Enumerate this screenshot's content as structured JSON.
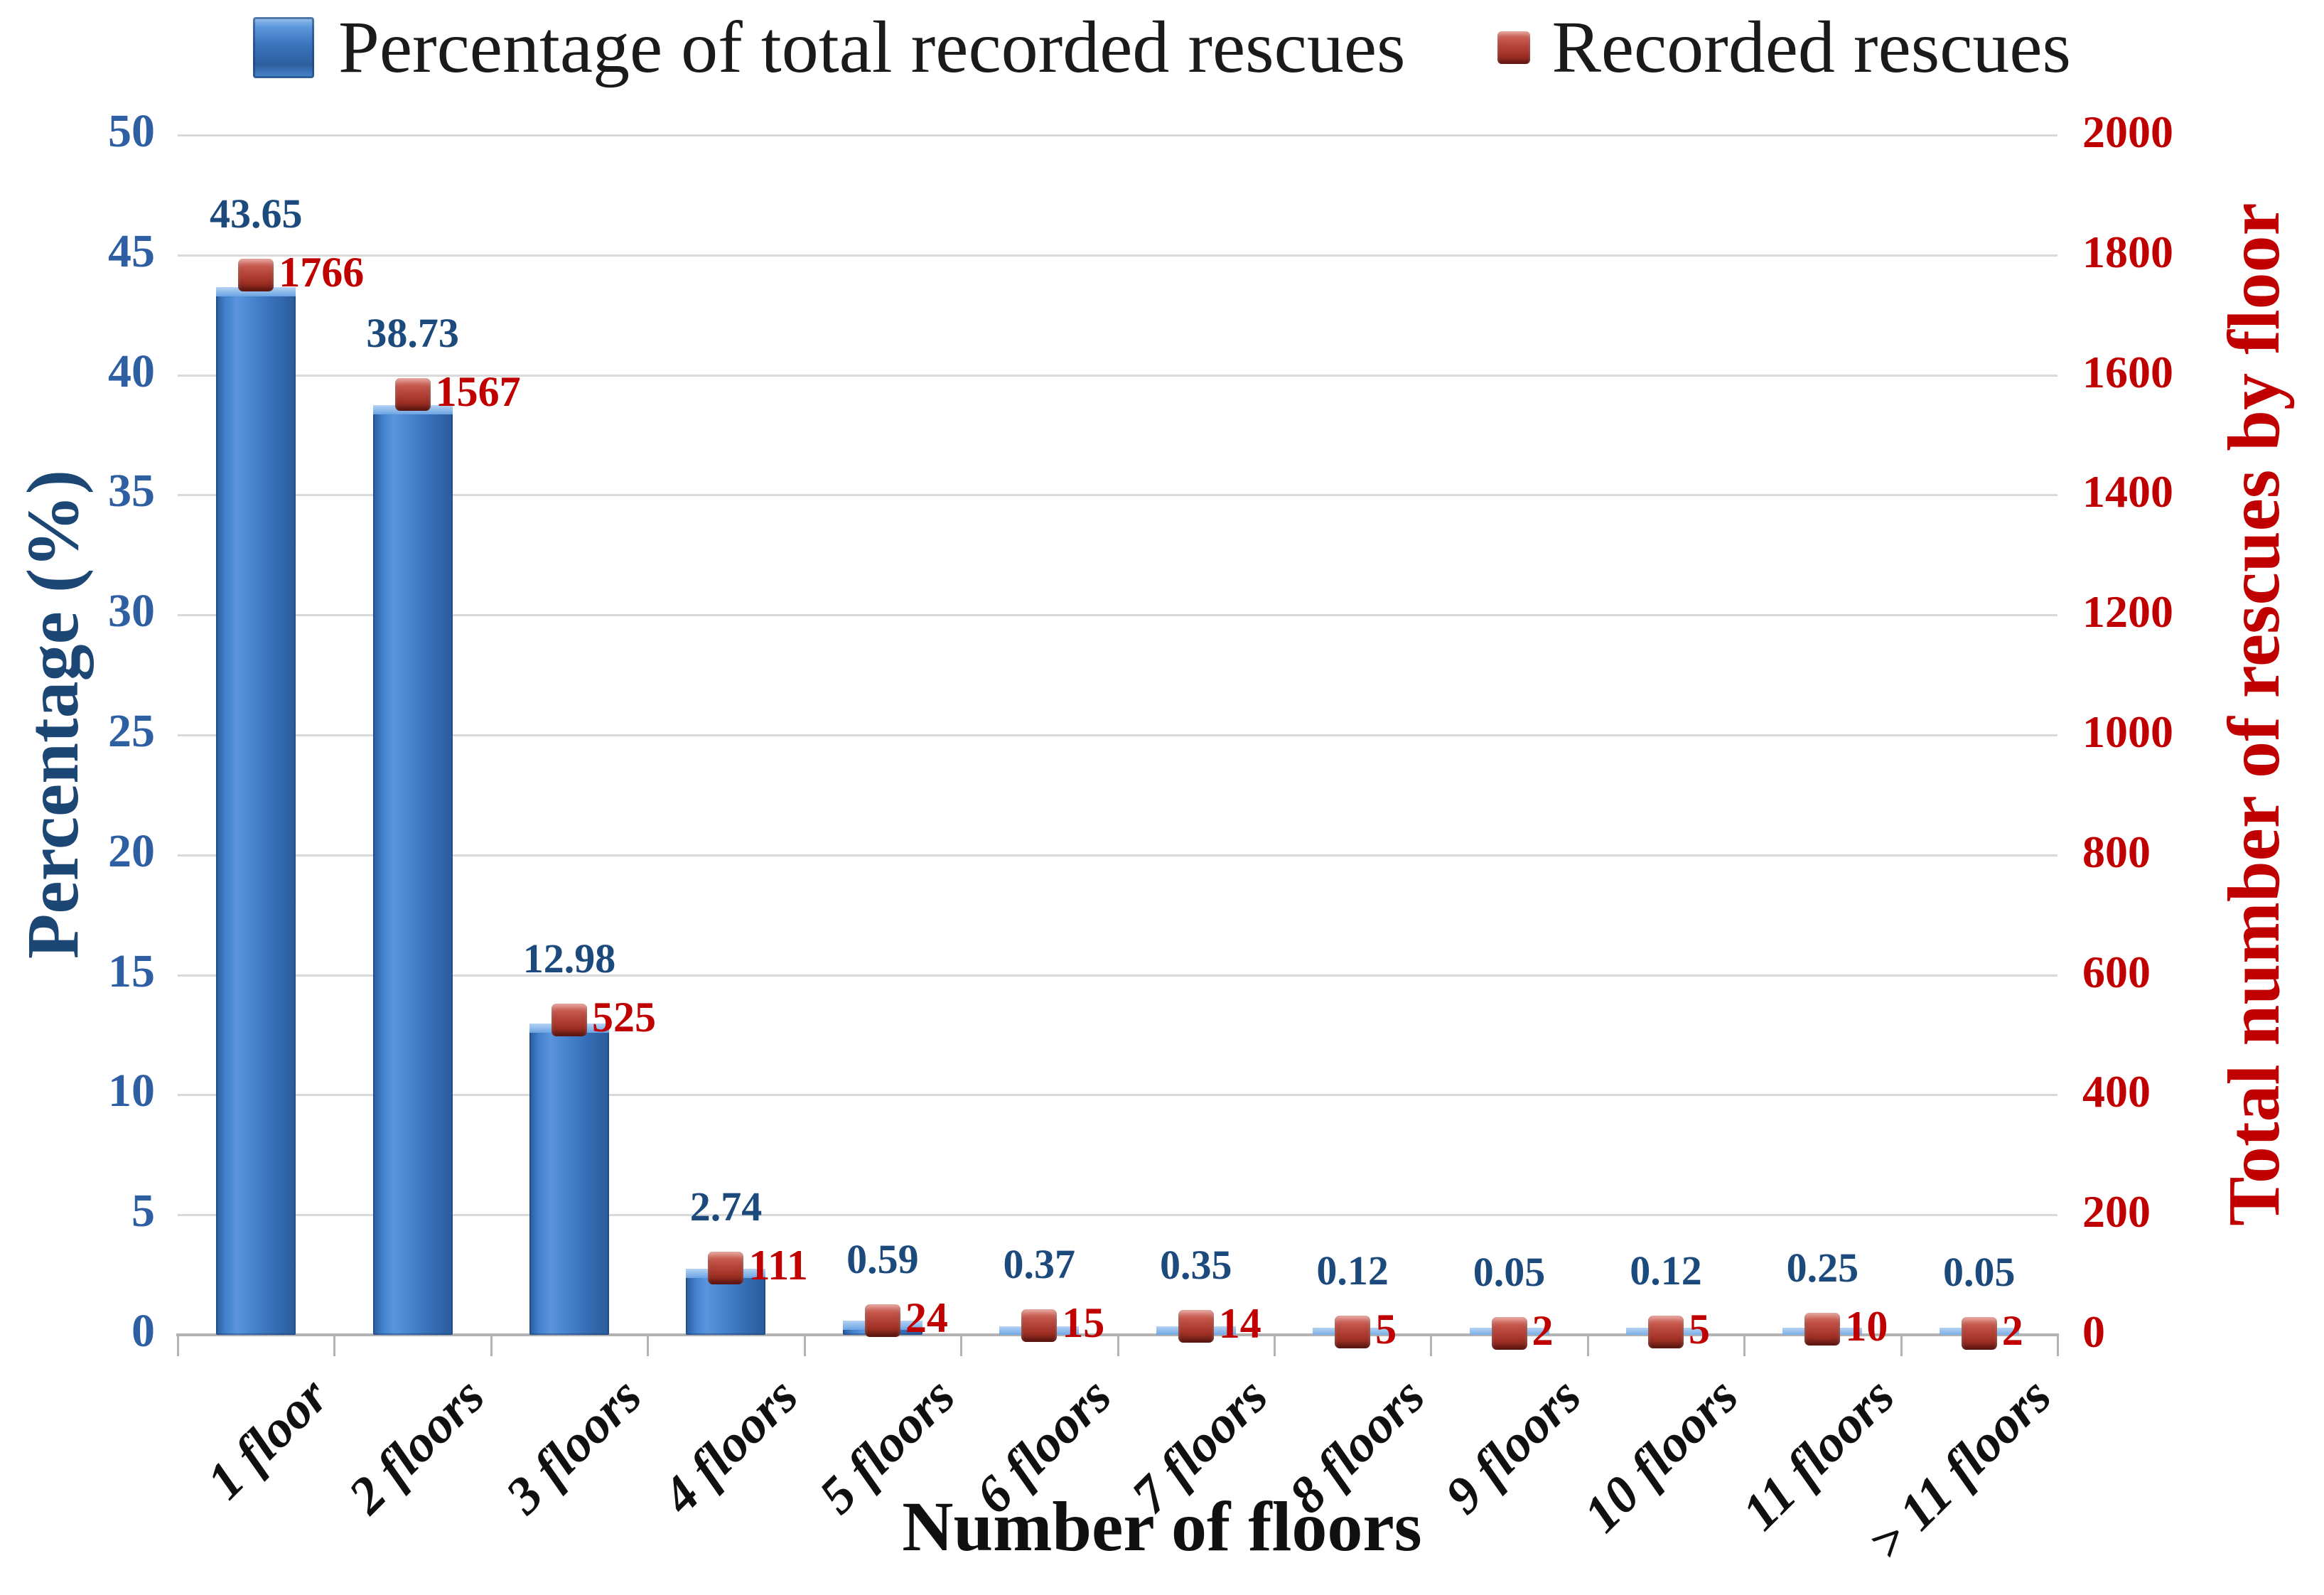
{
  "legend": {
    "items": [
      {
        "label": "Percentage of total recorded rescues",
        "swatch": "blue-bar-swatch"
      },
      {
        "label": "Recorded rescues",
        "swatch": "red-marker-swatch"
      }
    ]
  },
  "chart_data": {
    "type": "bar",
    "categories": [
      "1 floor",
      "2 floors",
      "3 floors",
      "4 floors",
      "5 floors",
      "6 floors",
      "7 floors",
      "8 floors",
      "9 floors",
      "10 floors",
      "11 floors",
      "> 11 floors"
    ],
    "series": [
      {
        "name": "Percentage of total recorded rescues",
        "type": "bar",
        "axis": "left",
        "color": "#3c77c0",
        "values": [
          43.65,
          38.73,
          12.98,
          2.74,
          0.59,
          0.37,
          0.35,
          0.12,
          0.05,
          0.12,
          0.25,
          0.05
        ],
        "labels": [
          "43.65",
          "38.73",
          "12.98",
          "2.74",
          "0.59",
          "0.37",
          "0.35",
          "0.12",
          "0.05",
          "0.12",
          "0.25",
          "0.05"
        ]
      },
      {
        "name": "Recorded rescues",
        "type": "point",
        "axis": "right",
        "color": "#b03a2e",
        "values": [
          1766,
          1567,
          525,
          111,
          24,
          15,
          14,
          5,
          2,
          5,
          10,
          2
        ],
        "labels": [
          "1766",
          "1567",
          "525",
          "111",
          "24",
          "15",
          "14",
          "5",
          "2",
          "5",
          "10",
          "2"
        ]
      }
    ],
    "left_axis": {
      "title": "Percentage (%)",
      "min": 0,
      "max": 50,
      "ticks": [
        0,
        5,
        10,
        15,
        20,
        25,
        30,
        35,
        40,
        45,
        50
      ],
      "color": "#2f5fa3"
    },
    "right_axis": {
      "title": "Total number of rescues by floor",
      "min": 0,
      "max": 2000,
      "ticks": [
        0,
        200,
        400,
        600,
        800,
        1000,
        1200,
        1400,
        1600,
        1800,
        2000
      ],
      "color": "#c00000"
    },
    "x_axis": {
      "title": "Number of floors"
    },
    "grid": true,
    "legend_position": "top"
  },
  "colors": {
    "bar_blue": "#3c77c0",
    "marker_red": "#b03a2e",
    "pct_label_blue": "#1d4a7d",
    "count_label_red": "#c00000",
    "left_tick_blue": "#2f5fa3",
    "right_tick_red": "#c00000",
    "gridline": "#d9d9d9",
    "axis_line": "#b3b3b3",
    "legend_text": "#1a1a1a"
  }
}
